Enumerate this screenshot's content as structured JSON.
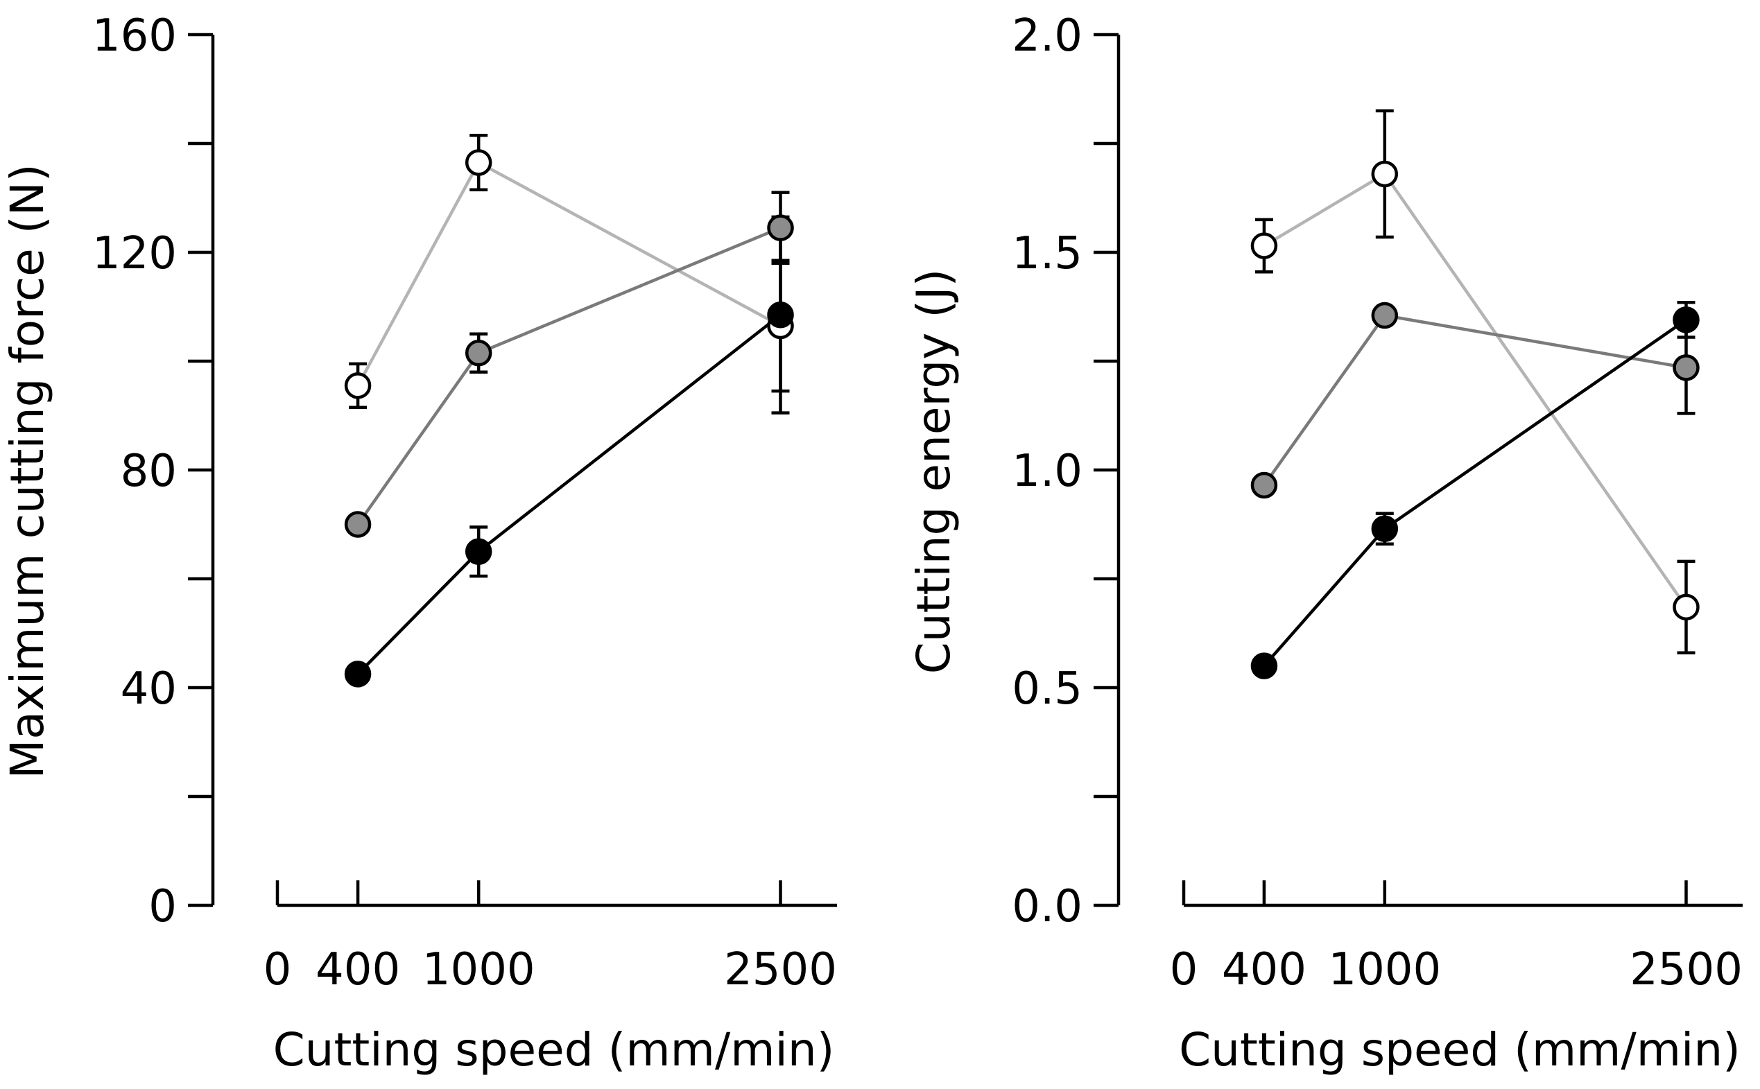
{
  "chart_data": [
    {
      "type": "line",
      "title": "",
      "xlabel": "Cutting speed (mm/min)",
      "ylabel": "Maximum cutting force (N)",
      "x": [
        400,
        1000,
        2500
      ],
      "xticks": [
        0,
        400,
        1000,
        2500
      ],
      "xtick_labels": [
        "0",
        "400",
        "1000",
        "2500"
      ],
      "xlim": [
        0,
        2800
      ],
      "ylim": [
        0,
        160
      ],
      "yticks_major": [
        0,
        40,
        80,
        120,
        160
      ],
      "ytick_labels": [
        "0",
        "40",
        "80",
        "120",
        "160"
      ],
      "yticks_minor": [
        20,
        60,
        100,
        140
      ],
      "legend": "none",
      "series": [
        {
          "name": "open circles (white)",
          "fill": "#ffffff",
          "line": "#b4b4b4",
          "values": [
            95.5,
            136.5,
            106.5
          ],
          "errors": [
            4,
            5,
            12
          ]
        },
        {
          "name": "grey circles",
          "fill": "#8c8c8c",
          "line": "#7a7a7a",
          "values": [
            70,
            101.5,
            124.5
          ],
          "errors": [
            0.5,
            3.5,
            6.5
          ]
        },
        {
          "name": "black circles",
          "fill": "#000000",
          "line": "#000000",
          "values": [
            42.5,
            65,
            108.5
          ],
          "errors": [
            0.5,
            4.5,
            18
          ]
        }
      ]
    },
    {
      "type": "line",
      "title": "",
      "xlabel": "Cutting speed (mm/min)",
      "ylabel": "Cutting energy (J)",
      "x": [
        400,
        1000,
        2500
      ],
      "xticks": [
        0,
        400,
        1000,
        2500
      ],
      "xtick_labels": [
        "0",
        "400",
        "1000",
        "2500"
      ],
      "xlim": [
        0,
        2800
      ],
      "ylim": [
        0,
        2
      ],
      "yticks_major": [
        0,
        0.5,
        1,
        1.5,
        2
      ],
      "ytick_labels": [
        "0.0",
        "0.5",
        "1.0",
        "1.5",
        "2.0"
      ],
      "yticks_minor": [
        0.25,
        0.75,
        1.25,
        1.75
      ],
      "legend": "none",
      "series": [
        {
          "name": "open circles (white)",
          "fill": "#ffffff",
          "line": "#b4b4b4",
          "values": [
            1.515,
            1.68,
            0.685
          ],
          "errors": [
            0.06,
            0.145,
            0.105
          ]
        },
        {
          "name": "grey circles",
          "fill": "#8c8c8c",
          "line": "#7a7a7a",
          "values": [
            0.965,
            1.355,
            1.235
          ],
          "errors": [
            0.01,
            0.01,
            0.105
          ]
        },
        {
          "name": "black circles",
          "fill": "#000000",
          "line": "#000000",
          "values": [
            0.55,
            0.865,
            1.345
          ],
          "errors": [
            0.02,
            0.035,
            0.04
          ]
        }
      ]
    }
  ]
}
